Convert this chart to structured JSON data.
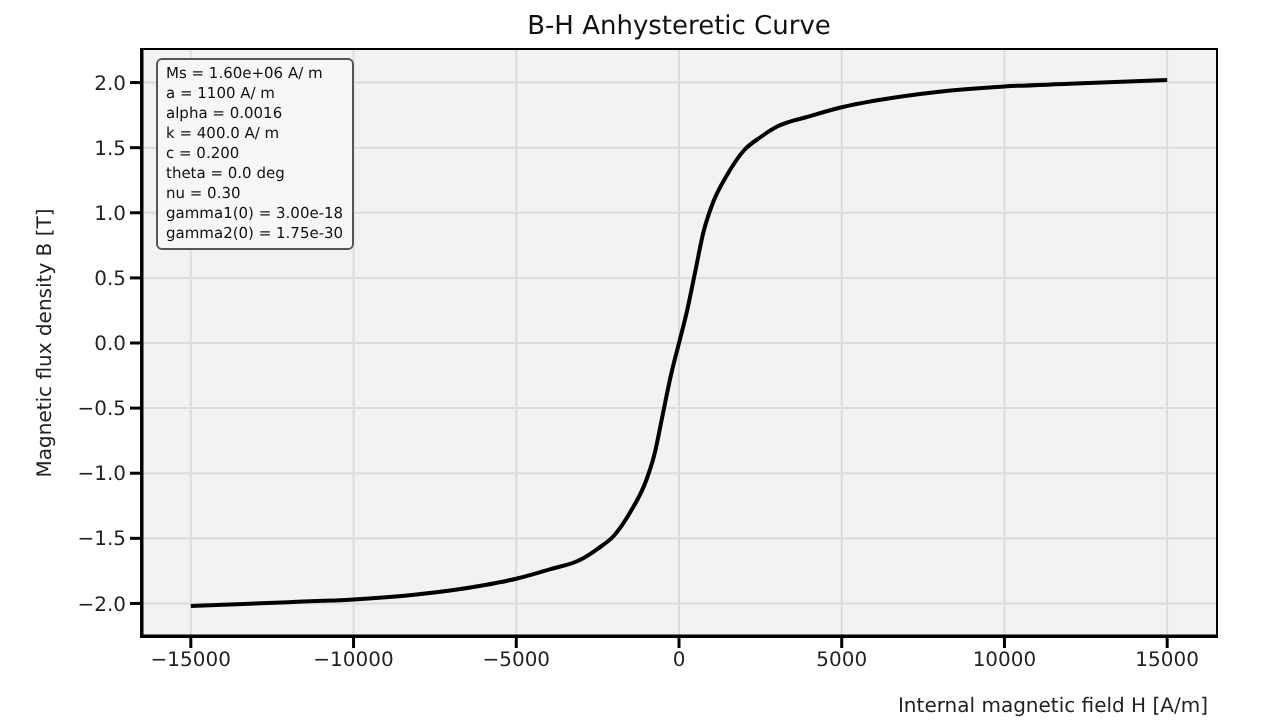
{
  "chart_data": {
    "type": "line",
    "title": "B-H Anhysteretic Curve",
    "xlabel": "Internal magnetic field H [A/m]",
    "ylabel": "Magnetic flux density B [T]",
    "x": [
      -15000,
      -12000,
      -10000,
      -8000,
      -6000,
      -5000,
      -4000,
      -3000,
      -2500,
      -2000,
      -1500,
      -1000,
      -750,
      -500,
      -250,
      0,
      250,
      500,
      750,
      1000,
      1500,
      2000,
      2500,
      3000,
      4000,
      5000,
      6000,
      8000,
      10000,
      12000,
      15000
    ],
    "series": [
      {
        "color": "#000000",
        "values": [
          -2.02,
          -1.99,
          -1.97,
          -1.93,
          -1.86,
          -1.81,
          -1.74,
          -1.66,
          -1.58,
          -1.48,
          -1.3,
          -1.05,
          -0.85,
          -0.55,
          -0.25,
          0,
          0.25,
          0.55,
          0.85,
          1.05,
          1.3,
          1.48,
          1.58,
          1.66,
          1.74,
          1.81,
          1.86,
          1.93,
          1.97,
          1.99,
          2.02
        ]
      }
    ],
    "xlim": [
      -16500,
      16500
    ],
    "ylim": [
      -2.25,
      2.25
    ],
    "xticks": [
      {
        "value": -15000,
        "label": "−15000"
      },
      {
        "value": -10000,
        "label": "−10000"
      },
      {
        "value": -5000,
        "label": "−5000"
      },
      0,
      5000,
      10000,
      15000
    ],
    "yticks": [
      {
        "value": -2,
        "label": "−2.0"
      },
      {
        "value": -1.5,
        "label": "−1.5"
      },
      {
        "value": -1,
        "label": "−1.0"
      },
      {
        "value": -0.5,
        "label": "−0.5"
      },
      {
        "value": 0,
        "label": "0.0"
      },
      {
        "value": 0.5,
        "label": "0.5"
      },
      {
        "value": 1,
        "label": "1.0"
      },
      {
        "value": 1.5,
        "label": "1.5"
      },
      {
        "value": 2,
        "label": "2.0"
      }
    ],
    "grid": true,
    "marker": "none",
    "line_style": "solid",
    "annotations": [
      "Ms = 1.60e+06 A/ m",
      "a = 1100 A/ m",
      "alpha = 0.0016",
      "k = 400.0 A/ m",
      "c = 0.200",
      "theta = 0.0 deg",
      "nu = 0.30",
      "gamma1(0) = 3.00e-18",
      "gamma2(0) = 1.75e-30"
    ]
  }
}
